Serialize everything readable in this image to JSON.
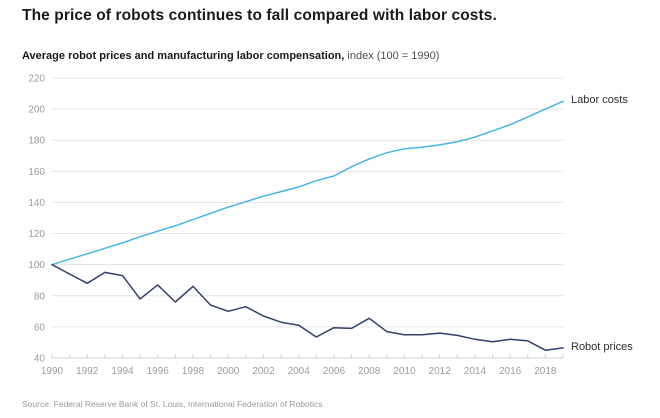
{
  "header": {
    "title": "The price of robots continues to fall compared with labor costs.",
    "subtitle_bold": "Average robot prices and manufacturing labor compensation,",
    "subtitle_rest": " index (100 = 1990)"
  },
  "source": "Source: Federal Reserve Bank of St. Louis, International Federation of Robotics",
  "colors": {
    "labor_line": "#47b4e5",
    "robot_line": "#323f6e",
    "gridline": "#e4e4e4",
    "axis": "#d2d2d2",
    "tick_label": "#9b9b9b",
    "series_label": "#2e2e2e"
  },
  "chart_data": {
    "type": "line",
    "title": "Average robot prices and manufacturing labor compensation, index (100 = 1990)",
    "x": [
      1990,
      1991,
      1992,
      1993,
      1994,
      1995,
      1996,
      1997,
      1998,
      1999,
      2000,
      2001,
      2002,
      2003,
      2004,
      2005,
      2006,
      2007,
      2008,
      2009,
      2010,
      2011,
      2012,
      2013,
      2014,
      2015,
      2016,
      2017,
      2018,
      2019
    ],
    "series": [
      {
        "name": "Labor costs",
        "values": [
          100,
          103.5,
          107,
          110.5,
          114,
          118,
          121.5,
          125,
          129,
          133,
          137,
          140.5,
          144,
          147,
          150,
          154,
          157,
          163,
          168,
          172,
          174.5,
          175.5,
          177,
          179,
          182,
          186,
          190,
          195,
          200,
          205
        ]
      },
      {
        "name": "Robot prices",
        "values": [
          100,
          94,
          88,
          95,
          93,
          78,
          87,
          76,
          86,
          74,
          70,
          73,
          67,
          63,
          61,
          53.5,
          59.5,
          59,
          65.5,
          57,
          55,
          55,
          56,
          54.5,
          52,
          50.5,
          52,
          51,
          45,
          46.5
        ]
      }
    ],
    "xlabel": "",
    "ylabel": "",
    "ylim": [
      40,
      220
    ],
    "yticks": [
      40,
      60,
      80,
      100,
      120,
      140,
      160,
      180,
      200,
      220
    ],
    "xticks": [
      1990,
      1992,
      1994,
      1996,
      1998,
      2000,
      2002,
      2004,
      2006,
      2008,
      2010,
      2012,
      2014,
      2016,
      2018
    ],
    "grid": true,
    "legend_position": "line-end-labels"
  }
}
